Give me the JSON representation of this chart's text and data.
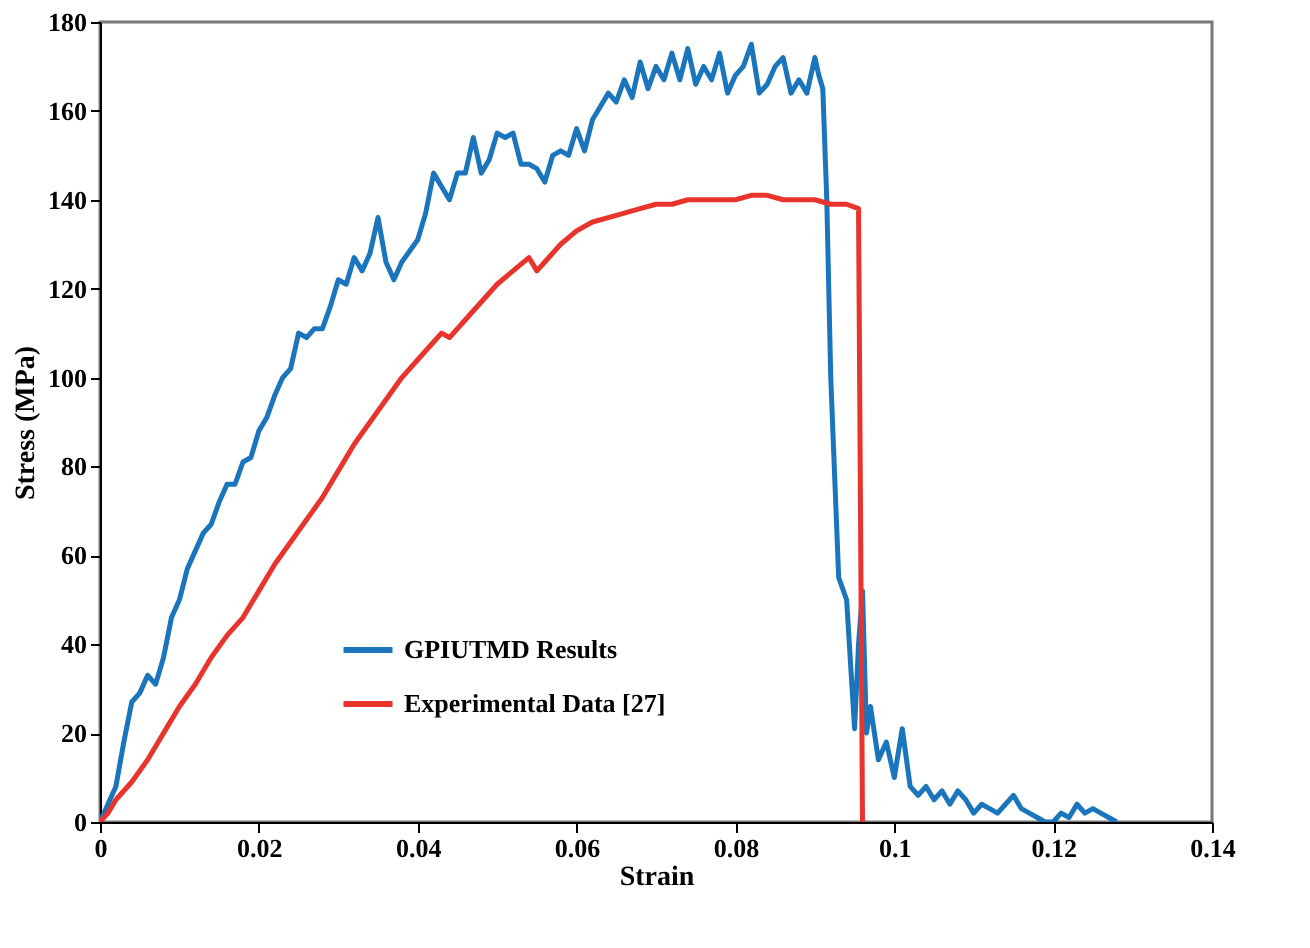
{
  "chart_data": {
    "type": "line",
    "xlabel": "Strain",
    "ylabel": "Stress (MPa)",
    "xlim": [
      0,
      0.14
    ],
    "xticks": [
      0,
      0.02,
      0.04,
      0.06,
      0.08,
      0.1,
      0.12,
      0.14
    ],
    "ylim": [
      0,
      180
    ],
    "yticks": [
      0,
      20,
      40,
      60,
      80,
      100,
      120,
      140,
      160,
      180
    ],
    "grid": false,
    "legend": "bottom left",
    "marker": "none",
    "line_style": "solid",
    "series": [
      {
        "name": "GPIUTMD Results",
        "color": "#1a75bc",
        "x": [
          0,
          0.002,
          0.003,
          0.004,
          0.005,
          0.006,
          0.007,
          0.008,
          0.009,
          0.01,
          0.011,
          0.012,
          0.013,
          0.014,
          0.015,
          0.016,
          0.017,
          0.018,
          0.019,
          0.02,
          0.021,
          0.022,
          0.023,
          0.024,
          0.025,
          0.026,
          0.027,
          0.028,
          0.029,
          0.03,
          0.031,
          0.032,
          0.033,
          0.034,
          0.035,
          0.036,
          0.037,
          0.038,
          0.04,
          0.041,
          0.042,
          0.043,
          0.044,
          0.045,
          0.046,
          0.047,
          0.048,
          0.049,
          0.05,
          0.051,
          0.052,
          0.053,
          0.054,
          0.055,
          0.056,
          0.057,
          0.058,
          0.059,
          0.06,
          0.061,
          0.062,
          0.063,
          0.064,
          0.065,
          0.066,
          0.067,
          0.068,
          0.069,
          0.07,
          0.071,
          0.072,
          0.073,
          0.074,
          0.075,
          0.076,
          0.077,
          0.078,
          0.079,
          0.08,
          0.081,
          0.082,
          0.083,
          0.084,
          0.085,
          0.086,
          0.087,
          0.088,
          0.089,
          0.09,
          0.0905,
          0.091,
          0.0915,
          0.092,
          0.093,
          0.094,
          0.095,
          0.0955,
          0.096,
          0.0965,
          0.097,
          0.098,
          0.099,
          0.1,
          0.101,
          0.102,
          0.103,
          0.104,
          0.105,
          0.106,
          0.107,
          0.108,
          0.109,
          0.11,
          0.111,
          0.112,
          0.113,
          0.114,
          0.115,
          0.116,
          0.117,
          0.118,
          0.119,
          0.12,
          0.121,
          0.122,
          0.123,
          0.124,
          0.125,
          0.126,
          0.127,
          0.128
        ],
        "values": [
          0,
          8,
          18,
          27,
          29,
          33,
          31,
          37,
          46,
          50,
          57,
          61,
          65,
          67,
          72,
          76,
          76,
          81,
          82,
          88,
          91,
          96,
          100,
          102,
          110,
          109,
          111,
          111,
          116,
          122,
          121,
          127,
          124,
          128,
          136,
          126,
          122,
          126,
          131,
          137,
          146,
          143,
          140,
          146,
          146,
          154,
          146,
          149,
          155,
          154,
          155,
          148,
          148,
          147,
          144,
          150,
          151,
          150,
          156,
          151,
          158,
          161,
          164,
          162,
          167,
          163,
          171,
          165,
          170,
          167,
          173,
          167,
          174,
          166,
          170,
          167,
          173,
          164,
          168,
          170,
          175,
          164,
          166,
          170,
          172,
          164,
          167,
          164,
          172,
          168,
          165,
          140,
          100,
          55,
          50,
          21,
          40,
          52,
          20,
          26,
          14,
          18,
          10,
          21,
          8,
          6,
          8,
          5,
          7,
          4,
          7,
          5,
          2,
          4,
          3,
          2,
          4,
          6,
          3,
          2,
          1,
          0,
          0,
          2,
          1,
          4,
          2,
          3,
          2,
          1,
          0
        ]
      },
      {
        "name": "Experimental Data [27]",
        "color": "#e8342c",
        "x": [
          0,
          0.001,
          0.002,
          0.004,
          0.006,
          0.008,
          0.01,
          0.012,
          0.014,
          0.016,
          0.018,
          0.02,
          0.022,
          0.024,
          0.026,
          0.028,
          0.03,
          0.032,
          0.034,
          0.036,
          0.038,
          0.04,
          0.042,
          0.043,
          0.044,
          0.046,
          0.048,
          0.05,
          0.052,
          0.054,
          0.055,
          0.056,
          0.058,
          0.06,
          0.062,
          0.064,
          0.066,
          0.068,
          0.07,
          0.072,
          0.074,
          0.076,
          0.078,
          0.08,
          0.082,
          0.084,
          0.086,
          0.088,
          0.09,
          0.092,
          0.094,
          0.0955,
          0.096
        ],
        "values": [
          0,
          2,
          5,
          9,
          14,
          20,
          26,
          31,
          37,
          42,
          46,
          52,
          58,
          63,
          68,
          73,
          79,
          85,
          90,
          95,
          100,
          104,
          108,
          110,
          109,
          113,
          117,
          121,
          124,
          127,
          124,
          126,
          130,
          133,
          135,
          136,
          137,
          138,
          139,
          139,
          140,
          140,
          140,
          140,
          141,
          141,
          140,
          140,
          140,
          139,
          139,
          138,
          0
        ]
      }
    ]
  }
}
